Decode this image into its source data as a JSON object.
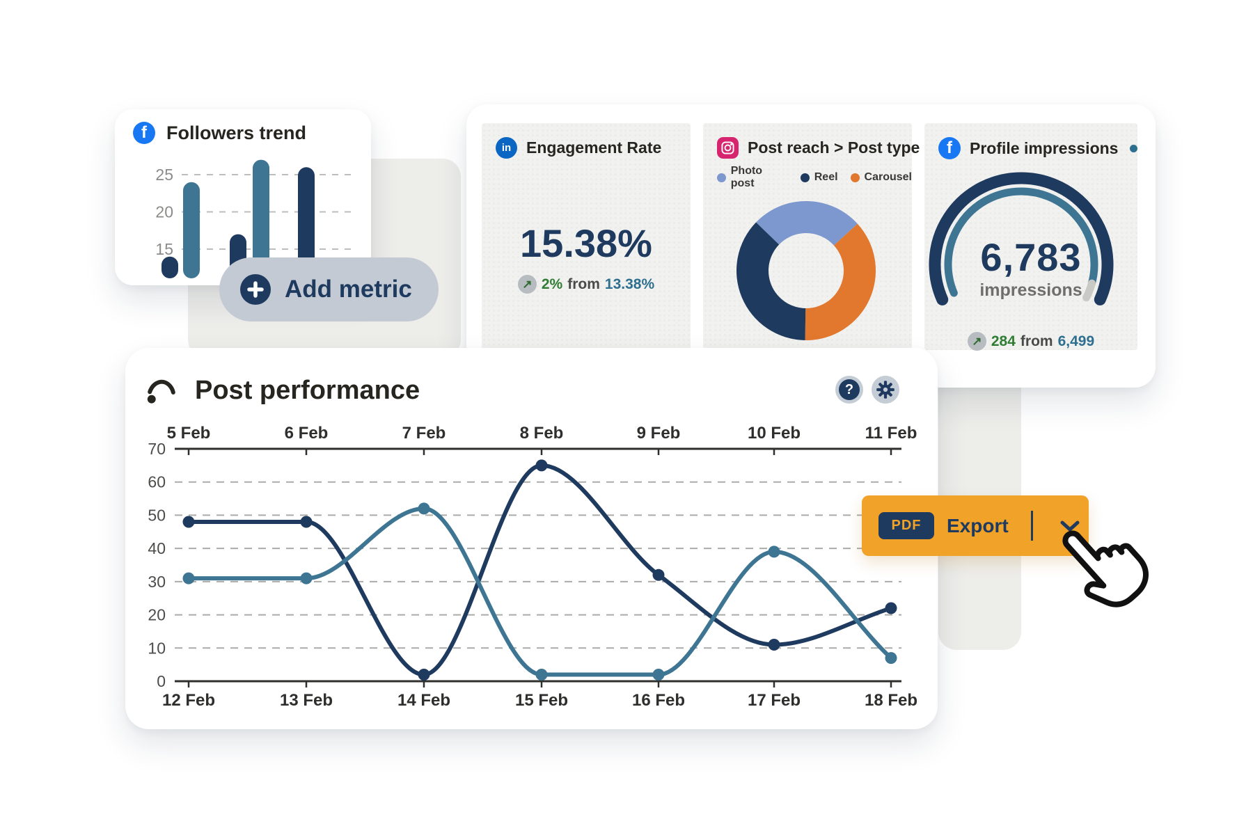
{
  "colors": {
    "navy": "#1f3a5f",
    "teal": "#3d7593",
    "photo_blue": "#7d97cf",
    "orange": "#e2772e",
    "remainder_gray": "#c9c9c6",
    "export_orange": "#f1a228",
    "green": "#2f7d33",
    "steel_blue": "#2e6f90",
    "facebook_blue": "#1877f2",
    "linkedin_blue": "#0a66c2",
    "instagram_pink": "#d6246e",
    "pill_gray": "#c3cad3",
    "card_gray": "#f1f1ef",
    "bg_shape_gray": "#ededea"
  },
  "icons": {
    "facebook_glyph": "f",
    "linkedin_glyph": "in",
    "help_glyph": "?",
    "arrow_up_right": "↗"
  },
  "followers_card": {
    "title": "Followers trend"
  },
  "add_metric_button": {
    "label": "Add metric"
  },
  "engagement_card": {
    "title": "Engagement Rate",
    "value": "15.38%",
    "delta": {
      "change": "2%",
      "from_word": "from",
      "previous": "13.38%"
    }
  },
  "post_reach_card": {
    "title": "Post reach > Post type",
    "legend": [
      {
        "label": "Photo post",
        "color_key": "photo_blue"
      },
      {
        "label": "Reel",
        "color_key": "navy"
      },
      {
        "label": "Carousel",
        "color_key": "orange"
      }
    ]
  },
  "impressions_card": {
    "title": "Profile impressions",
    "value": "6,783",
    "unit": "impressions",
    "delta": {
      "change": "284",
      "from_word": "from",
      "previous": "6,499"
    }
  },
  "performance_card": {
    "title": "Post performance"
  },
  "export_button": {
    "badge": "PDF",
    "label": "Export"
  },
  "chart_data": [
    {
      "id": "followers_trend",
      "type": "bar",
      "yticks": [
        25,
        20,
        15
      ],
      "values": [
        14,
        24,
        17,
        27,
        26
      ],
      "bar_colors": [
        "navy",
        "teal",
        "navy",
        "teal",
        "navy"
      ],
      "grid": "dashed-horizontal"
    },
    {
      "id": "post_reach_by_type",
      "type": "pie",
      "title": "Post reach > Post type",
      "start_angle": -46,
      "inner_radius_ratio": 0.54,
      "segments": [
        {
          "label": "Photo post",
          "percent": 26,
          "color_key": "photo_blue"
        },
        {
          "label": "Carousel",
          "percent": 37,
          "color_key": "orange"
        },
        {
          "label": "Reel",
          "percent": 37,
          "color_key": "navy"
        }
      ]
    },
    {
      "id": "profile_impressions_gauge",
      "type": "gauge",
      "value": 6783,
      "previous": 6499,
      "outer_arc": {
        "start_deg": 246,
        "end_deg": 114,
        "color_key": "navy"
      },
      "progress_arc": {
        "start_deg": 247,
        "end_deg": 105,
        "color_key": "teal"
      },
      "remainder_arc": {
        "start_deg": 105,
        "end_deg": 117,
        "color_key": "remainder_gray"
      }
    },
    {
      "id": "post_performance",
      "type": "line",
      "x_top_labels": [
        "5 Feb",
        "6 Feb",
        "7 Feb",
        "8 Feb",
        "9 Feb",
        "10 Feb",
        "11 Feb"
      ],
      "x_bottom_labels": [
        "12 Feb",
        "13 Feb",
        "14 Feb",
        "15 Feb",
        "16 Feb",
        "17 Feb",
        "18 Feb"
      ],
      "yticks": [
        70,
        60,
        50,
        40,
        30,
        20,
        10,
        0
      ],
      "ylim": [
        0,
        70
      ],
      "grid": "dashed-horizontal",
      "series": [
        {
          "name": "dark-series",
          "color_key": "navy",
          "values": [
            48,
            48,
            2,
            65,
            32,
            11,
            22
          ]
        },
        {
          "name": "teal-series",
          "color_key": "teal",
          "values": [
            31,
            31,
            52,
            2,
            2,
            39,
            7
          ]
        }
      ]
    }
  ]
}
